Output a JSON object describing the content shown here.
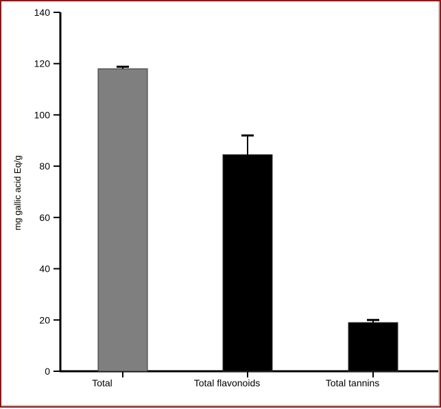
{
  "chart_data": {
    "type": "bar",
    "ylabel": "mg gallic acid Eq/g",
    "xlabel": "",
    "ylim": [
      0,
      140
    ],
    "yticks": [
      0,
      20,
      40,
      60,
      80,
      100,
      120,
      140
    ],
    "categories": [
      "Total",
      "Total flavonoids",
      "Total tannins"
    ],
    "values": [
      118,
      84.5,
      19
    ],
    "errors": [
      0.8,
      7.5,
      1.0
    ],
    "grid": false,
    "colors": [
      "#7f7f7f",
      "#000000",
      "#000000"
    ]
  },
  "frame": {
    "border_color": "#8b1a1a"
  }
}
